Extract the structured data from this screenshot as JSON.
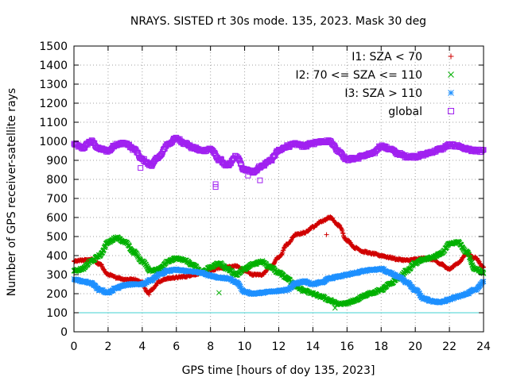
{
  "chart_data": {
    "type": "scatter",
    "title": "NRAYS. SISTED rt 30s mode. 135, 2023. Mask 30 deg",
    "xlabel": "GPS time [hours of doy 135, 2023]",
    "ylabel": "Number of GPS receiver-satellite rays",
    "xlim": [
      0,
      24
    ],
    "ylim": [
      0,
      1500
    ],
    "xticks": [
      0,
      2,
      4,
      6,
      8,
      10,
      12,
      14,
      16,
      18,
      20,
      22,
      24
    ],
    "yticks": [
      0,
      100,
      200,
      300,
      400,
      500,
      600,
      700,
      800,
      900,
      1000,
      1100,
      1200,
      1300,
      1400,
      1500
    ],
    "grid": true,
    "legend_position": "top-right",
    "reference_line": {
      "y": 100,
      "color": "#40d0d0"
    },
    "series": [
      {
        "name": "I1: SZA < 70",
        "marker": "+",
        "color": "#d00000",
        "x": [
          0,
          0.5,
          1,
          1.5,
          2,
          2.5,
          3,
          3.5,
          4,
          4.3,
          4.6,
          5,
          5.5,
          6,
          6.5,
          7,
          7.5,
          8,
          8.5,
          9,
          9.5,
          10,
          10.5,
          11,
          11.5,
          12,
          12.5,
          13,
          13.5,
          14,
          14.5,
          15,
          15.5,
          16,
          16.5,
          17,
          17.5,
          18,
          18.5,
          19,
          19.5,
          20,
          20.5,
          21,
          21.5,
          22,
          22.5,
          23,
          23.5,
          24
        ],
        "y": [
          370,
          375,
          380,
          355,
          300,
          285,
          275,
          275,
          260,
          205,
          225,
          265,
          280,
          285,
          290,
          300,
          310,
          320,
          335,
          340,
          345,
          320,
          300,
          300,
          340,
          390,
          460,
          510,
          520,
          550,
          580,
          600,
          560,
          480,
          440,
          420,
          410,
          400,
          390,
          380,
          375,
          380,
          385,
          380,
          355,
          330,
          360,
          410,
          390,
          340
        ]
      },
      {
        "name": "I2: 70 <= SZA <= 110",
        "marker": "x",
        "color": "#00b000",
        "x": [
          0,
          0.5,
          1,
          1.5,
          2,
          2.5,
          3,
          3.5,
          4,
          4.5,
          5,
          5.5,
          6,
          6.5,
          7,
          7.5,
          8,
          8.5,
          9,
          9.5,
          10,
          10.5,
          11,
          11.5,
          12,
          12.5,
          13,
          13.5,
          14,
          14.5,
          15,
          15.5,
          16,
          16.5,
          17,
          17.5,
          18,
          18.5,
          19,
          19.5,
          20,
          20.5,
          21,
          21.5,
          22,
          22.5,
          23,
          23.5,
          24
        ],
        "y": [
          320,
          330,
          370,
          400,
          470,
          495,
          470,
          420,
          370,
          320,
          330,
          370,
          385,
          375,
          350,
          310,
          340,
          360,
          330,
          300,
          330,
          355,
          370,
          340,
          310,
          280,
          240,
          215,
          200,
          185,
          165,
          145,
          150,
          165,
          190,
          205,
          220,
          250,
          280,
          320,
          360,
          380,
          390,
          410,
          460,
          470,
          420,
          330,
          310
        ]
      },
      {
        "name": "I3: SZA > 110",
        "marker": "*",
        "color": "#1e90ff",
        "x": [
          0,
          0.5,
          1,
          1.5,
          2,
          2.5,
          3,
          3.5,
          4,
          4.5,
          5,
          5.5,
          6,
          6.5,
          7,
          7.5,
          8,
          8.5,
          9,
          9.5,
          10,
          10.5,
          11,
          11.5,
          12,
          12.5,
          13,
          13.5,
          14,
          14.5,
          15,
          15.5,
          16,
          16.5,
          17,
          17.5,
          18,
          18.5,
          19,
          19.5,
          20,
          20.5,
          21,
          21.5,
          22,
          22.5,
          23,
          23.5,
          24
        ],
        "y": [
          275,
          265,
          255,
          220,
          205,
          230,
          245,
          250,
          250,
          270,
          300,
          320,
          325,
          320,
          315,
          310,
          295,
          285,
          280,
          260,
          210,
          200,
          205,
          210,
          215,
          220,
          255,
          265,
          250,
          260,
          280,
          290,
          300,
          310,
          320,
          325,
          330,
          310,
          290,
          260,
          220,
          175,
          160,
          155,
          170,
          185,
          200,
          220,
          260
        ]
      },
      {
        "name": "global",
        "marker": "square",
        "color": "#a020f0",
        "x": [
          0,
          0.5,
          1,
          1.5,
          2,
          2.5,
          3,
          3.5,
          4,
          4.5,
          5,
          5.5,
          6,
          6.5,
          7,
          7.5,
          8,
          8.5,
          9,
          9.5,
          10,
          10.5,
          11,
          11.5,
          12,
          12.5,
          13,
          13.5,
          14,
          14.5,
          15,
          15.5,
          16,
          16.5,
          17,
          17.5,
          18,
          18.5,
          19,
          19.5,
          20,
          20.5,
          21,
          21.5,
          22,
          22.5,
          23,
          23.5,
          24
        ],
        "y": [
          985,
          965,
          1000,
          960,
          950,
          985,
          990,
          960,
          905,
          875,
          920,
          985,
          1015,
          990,
          965,
          950,
          960,
          905,
          870,
          920,
          850,
          840,
          870,
          900,
          950,
          975,
          985,
          975,
          990,
          1000,
          1000,
          950,
          905,
          910,
          925,
          935,
          975,
          960,
          935,
          920,
          920,
          930,
          945,
          960,
          980,
          975,
          960,
          950,
          950
        ]
      }
    ],
    "outliers": {
      "global": [
        {
          "x": 3.9,
          "y": 860
        },
        {
          "x": 8.3,
          "y": 760
        },
        {
          "x": 8.3,
          "y": 775
        },
        {
          "x": 10.9,
          "y": 795
        },
        {
          "x": 10.2,
          "y": 820
        }
      ],
      "I2: 70 <= SZA <= 110": [
        {
          "x": 8.5,
          "y": 205
        },
        {
          "x": 15.3,
          "y": 125
        },
        {
          "x": 3.5,
          "y": 410
        }
      ],
      "I1: SZA < 70": [
        {
          "x": 14.8,
          "y": 510
        },
        {
          "x": 4.4,
          "y": 195
        }
      ]
    }
  }
}
